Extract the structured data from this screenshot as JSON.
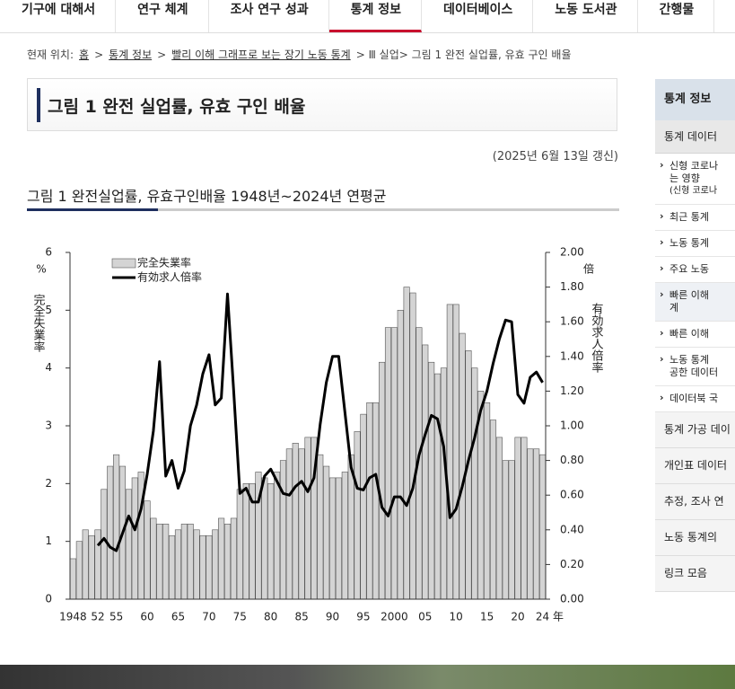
{
  "nav": {
    "items": [
      "기구에 대해서",
      "연구 체계",
      "조사 연구 성과",
      "통계 정보",
      "데이터베이스",
      "노동 도서관",
      "간행물"
    ],
    "active": 3
  },
  "breadcrumb": {
    "label": "현재 위치:",
    "links": [
      "홈",
      "통계 정보",
      "빨리 이해 그래프로 보는 장기 노동 통계"
    ],
    "separator": ">",
    "current": "> Ⅲ 실업> 그림 1 완전 실업률, 유효 구인 배율"
  },
  "header": {
    "title": "그림 1 완전 실업률, 유효 구인 배율",
    "updated": "(2025년 6월 13일 갱신)",
    "chart_heading": "그림 1 완전실업률, 유효구인배율 1948년~2024년 연평균"
  },
  "sidebar": {
    "title": "통계 정보",
    "section": "통계 데이터",
    "items": [
      [
        "신형 코로나",
        "는 영향",
        "(신형 코로나"
      ],
      [
        "최근 통계"
      ],
      [
        "노동 통계"
      ],
      [
        "주요 노동"
      ],
      [
        "빠른 이해",
        "계"
      ],
      [
        "빠른 이해"
      ],
      [
        "노동 통계",
        "공한 데이터"
      ],
      [
        "데이터북 국"
      ]
    ],
    "groups": [
      "통계 가공 데이",
      "개인표 데이터",
      "추정, 조사 연",
      "노동 통계의",
      "링크 모음"
    ]
  },
  "chart_data": {
    "type": "bar-line",
    "categories": [
      "1948",
      null,
      null,
      null,
      "52",
      null,
      null,
      "55",
      null,
      null,
      null,
      null,
      "60",
      null,
      null,
      null,
      null,
      "65",
      null,
      null,
      null,
      null,
      "70",
      null,
      null,
      null,
      null,
      "75",
      null,
      null,
      null,
      null,
      "80",
      null,
      null,
      null,
      null,
      "85",
      null,
      null,
      null,
      null,
      "90",
      null,
      null,
      null,
      null,
      "95",
      null,
      null,
      null,
      null,
      "2000",
      null,
      null,
      null,
      null,
      "05",
      null,
      null,
      null,
      null,
      "10",
      null,
      null,
      null,
      null,
      "15",
      null,
      null,
      null,
      null,
      "20",
      null,
      null,
      null,
      "24"
    ],
    "x_unit": "年",
    "y_unit": "%",
    "y2_unit": "倍",
    "ylabel": "完全失業率",
    "y2label": "有効求人倍率",
    "ylim": [
      0,
      6
    ],
    "yticks": [
      0,
      1,
      2,
      3,
      4,
      5,
      6
    ],
    "y2lim": [
      0,
      2
    ],
    "y2ticks": [
      {
        "value": 0,
        "label": "0.00"
      },
      {
        "value": 0.2,
        "label": "0.20"
      },
      {
        "value": 0.4,
        "label": "0.40"
      },
      {
        "value": 0.6,
        "label": "0.60"
      },
      {
        "value": 0.8,
        "label": "0.80"
      },
      {
        "value": 1,
        "label": "1.00"
      },
      {
        "value": 1.2,
        "label": "1.20"
      },
      {
        "value": 1.4,
        "label": "1.40"
      },
      {
        "value": 1.6,
        "label": "1.60"
      },
      {
        "value": 1.8,
        "label": "1.80"
      },
      {
        "value": 2,
        "label": "2.00"
      }
    ],
    "series": [
      {
        "name": "完全失業率",
        "type": "bar",
        "color": "#d4d4d4",
        "values": [
          0.7,
          1.0,
          1.2,
          1.1,
          1.2,
          1.9,
          2.3,
          2.5,
          2.3,
          1.9,
          2.1,
          2.2,
          1.7,
          1.4,
          1.3,
          1.3,
          1.1,
          1.2,
          1.3,
          1.3,
          1.2,
          1.1,
          1.1,
          1.2,
          1.4,
          1.3,
          1.4,
          1.9,
          2.0,
          2.0,
          2.2,
          2.1,
          2.0,
          2.2,
          2.4,
          2.6,
          2.7,
          2.6,
          2.8,
          2.8,
          2.5,
          2.3,
          2.1,
          2.1,
          2.2,
          2.5,
          2.9,
          3.2,
          3.4,
          3.4,
          4.1,
          4.7,
          4.7,
          5.0,
          5.4,
          5.3,
          4.7,
          4.4,
          4.1,
          3.9,
          4.0,
          5.1,
          5.1,
          4.6,
          4.3,
          4.0,
          3.6,
          3.4,
          3.1,
          2.8,
          2.4,
          2.4,
          2.8,
          2.8,
          2.6,
          2.6,
          2.5
        ]
      },
      {
        "name": "有効求人倍率",
        "type": "line",
        "axis": "y2",
        "color": "#000000",
        "values": [
          null,
          null,
          null,
          null,
          0.31,
          0.35,
          0.3,
          0.28,
          0.38,
          0.48,
          0.4,
          0.52,
          0.72,
          0.97,
          1.37,
          0.71,
          0.8,
          0.64,
          0.74,
          1.0,
          1.12,
          1.3,
          1.41,
          1.12,
          1.16,
          1.76,
          1.2,
          0.61,
          0.64,
          0.56,
          0.56,
          0.71,
          0.75,
          0.68,
          0.61,
          0.6,
          0.65,
          0.68,
          0.62,
          0.7,
          1.01,
          1.25,
          1.4,
          1.4,
          1.08,
          0.76,
          0.64,
          0.63,
          0.7,
          0.72,
          0.53,
          0.48,
          0.59,
          0.59,
          0.54,
          0.64,
          0.83,
          0.95,
          1.06,
          1.04,
          0.88,
          0.47,
          0.52,
          0.65,
          0.8,
          0.93,
          1.09,
          1.2,
          1.36,
          1.5,
          1.61,
          1.6,
          1.18,
          1.13,
          1.28,
          1.31,
          1.25
        ]
      }
    ]
  }
}
